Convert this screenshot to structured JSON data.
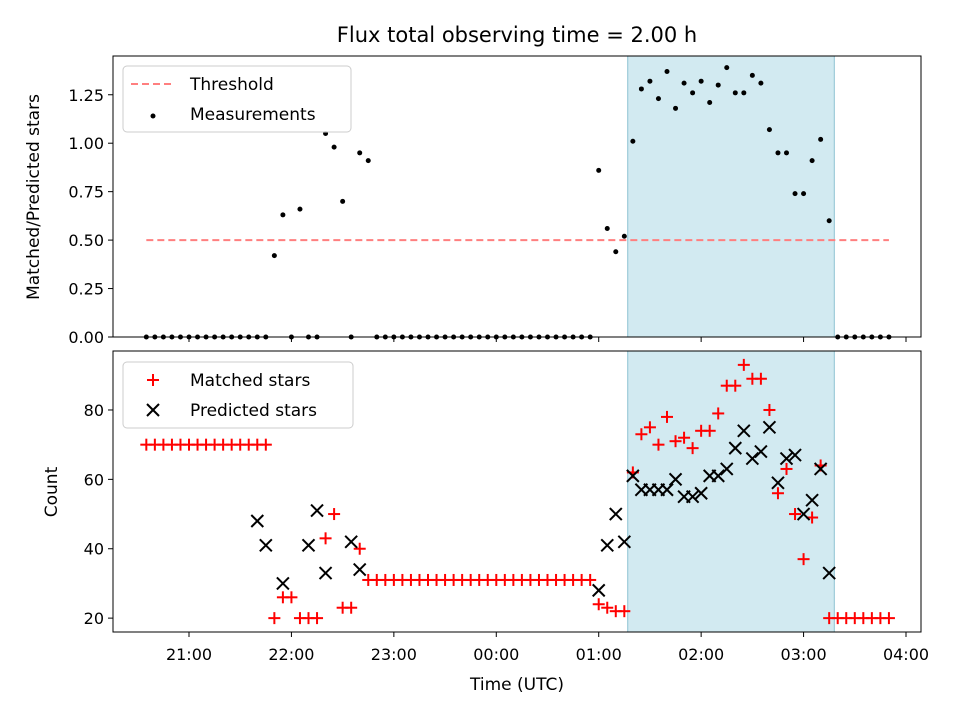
{
  "chart_data": [
    {
      "type": "scatter",
      "title": "Flux total observing time = 2.00 h",
      "xlabel": "",
      "ylabel": "Matched/Predicted stars",
      "ylim": [
        0,
        1.45
      ],
      "yticks": [
        "0.00",
        "0.25",
        "0.50",
        "0.75",
        "1.00",
        "1.25"
      ],
      "legend_position": "upper-left",
      "highlight_span": {
        "start": "01:17",
        "end": "03:18",
        "color": "#add8e6"
      },
      "series": [
        {
          "name": "Threshold",
          "kind": "dashed-line",
          "color": "#ff7f7f",
          "x": [
            "20:35",
            "03:50"
          ],
          "values": [
            0.5,
            0.5
          ]
        },
        {
          "name": "Measurements",
          "kind": "points",
          "color": "#000000",
          "x": [
            "20:35",
            "20:40",
            "20:45",
            "20:50",
            "20:55",
            "21:00",
            "21:05",
            "21:10",
            "21:15",
            "21:20",
            "21:25",
            "21:30",
            "21:35",
            "21:40",
            "21:45",
            "21:50",
            "21:55",
            "22:00",
            "22:05",
            "22:10",
            "22:15",
            "22:20",
            "22:25",
            "22:30",
            "22:35",
            "22:40",
            "22:45",
            "22:50",
            "22:55",
            "23:00",
            "23:05",
            "23:10",
            "23:15",
            "23:20",
            "23:25",
            "23:30",
            "23:35",
            "23:40",
            "23:45",
            "23:50",
            "23:55",
            "00:00",
            "00:05",
            "00:10",
            "00:15",
            "00:20",
            "00:25",
            "00:30",
            "00:35",
            "00:40",
            "00:45",
            "00:50",
            "00:55",
            "01:00",
            "01:05",
            "01:10",
            "01:15",
            "01:20",
            "01:25",
            "01:30",
            "01:35",
            "01:40",
            "01:45",
            "01:50",
            "01:55",
            "02:00",
            "02:05",
            "02:10",
            "02:15",
            "02:20",
            "02:25",
            "02:30",
            "02:35",
            "02:40",
            "02:45",
            "02:50",
            "02:55",
            "03:00",
            "03:05",
            "03:10",
            "03:15",
            "03:20",
            "03:25",
            "03:30",
            "03:35",
            "03:40",
            "03:45",
            "03:50"
          ],
          "values": [
            0,
            0,
            0,
            0,
            0,
            0,
            0,
            0,
            0,
            0,
            0,
            0,
            0,
            0,
            0,
            0.42,
            0.63,
            0,
            0.66,
            0,
            0,
            1.05,
            0.98,
            0.7,
            0,
            0.95,
            0.91,
            0,
            0,
            0,
            0,
            0,
            0,
            0,
            0,
            0,
            0,
            0,
            0,
            0,
            0,
            0,
            0,
            0,
            0,
            0,
            0,
            0,
            0,
            0,
            0,
            0,
            0,
            0.86,
            0.56,
            0.44,
            0.52,
            1.01,
            1.28,
            1.32,
            1.23,
            1.37,
            1.18,
            1.31,
            1.26,
            1.32,
            1.21,
            1.3,
            1.39,
            1.26,
            1.26,
            1.35,
            1.31,
            1.07,
            0.95,
            0.95,
            0.74,
            0.74,
            0.91,
            1.02,
            0.6,
            0,
            0,
            0,
            0,
            0,
            0,
            0
          ]
        }
      ]
    },
    {
      "type": "scatter",
      "title": "",
      "xlabel": "Time (UTC)",
      "ylabel": "Count",
      "ylim": [
        16,
        97
      ],
      "yticks": [
        "20",
        "40",
        "60",
        "80"
      ],
      "xticks": [
        "21:00",
        "22:00",
        "23:00",
        "00:00",
        "01:00",
        "02:00",
        "03:00",
        "04:00"
      ],
      "legend_position": "upper-left",
      "highlight_span": {
        "start": "01:17",
        "end": "03:18",
        "color": "#add8e6"
      },
      "series": [
        {
          "name": "Matched stars",
          "kind": "plus",
          "color": "#ff0000",
          "x": [
            "20:35",
            "20:40",
            "20:45",
            "20:50",
            "20:55",
            "21:00",
            "21:05",
            "21:10",
            "21:15",
            "21:20",
            "21:25",
            "21:30",
            "21:35",
            "21:40",
            "21:45",
            "21:50",
            "21:55",
            "22:00",
            "22:05",
            "22:10",
            "22:15",
            "22:20",
            "22:25",
            "22:30",
            "22:35",
            "22:40",
            "22:45",
            "22:50",
            "22:55",
            "23:00",
            "23:05",
            "23:10",
            "23:15",
            "23:20",
            "23:25",
            "23:30",
            "23:35",
            "23:40",
            "23:45",
            "23:50",
            "23:55",
            "00:00",
            "00:05",
            "00:10",
            "00:15",
            "00:20",
            "00:25",
            "00:30",
            "00:35",
            "00:40",
            "00:45",
            "00:50",
            "00:55",
            "01:00",
            "01:05",
            "01:10",
            "01:15",
            "01:20",
            "01:25",
            "01:30",
            "01:35",
            "01:40",
            "01:45",
            "01:50",
            "01:55",
            "02:00",
            "02:05",
            "02:10",
            "02:15",
            "02:20",
            "02:25",
            "02:30",
            "02:35",
            "02:40",
            "02:45",
            "02:50",
            "02:55",
            "03:00",
            "03:05",
            "03:10",
            "03:15",
            "03:20",
            "03:25",
            "03:30",
            "03:35",
            "03:40",
            "03:45",
            "03:50"
          ],
          "values": [
            70,
            70,
            70,
            70,
            70,
            70,
            70,
            70,
            70,
            70,
            70,
            70,
            70,
            70,
            70,
            20,
            26,
            26,
            20,
            20,
            20,
            43,
            50,
            23,
            23,
            40,
            31,
            31,
            31,
            31,
            31,
            31,
            31,
            31,
            31,
            31,
            31,
            31,
            31,
            31,
            31,
            31,
            31,
            31,
            31,
            31,
            31,
            31,
            31,
            31,
            31,
            31,
            31,
            24,
            23,
            22,
            22,
            62,
            73,
            75,
            70,
            78,
            71,
            72,
            69,
            74,
            74,
            79,
            87,
            87,
            93,
            89,
            89,
            80,
            56,
            63,
            50,
            37,
            49,
            64,
            20,
            20,
            20,
            20,
            20,
            20,
            20,
            20
          ]
        },
        {
          "name": "Predicted stars",
          "kind": "cross",
          "color": "#000000",
          "x": [
            "21:40",
            "21:45",
            "21:55",
            "22:10",
            "22:15",
            "22:20",
            "22:35",
            "22:40",
            "01:00",
            "01:05",
            "01:10",
            "01:15",
            "01:20",
            "01:25",
            "01:30",
            "01:35",
            "01:40",
            "01:45",
            "01:50",
            "01:55",
            "02:00",
            "02:05",
            "02:10",
            "02:15",
            "02:20",
            "02:25",
            "02:30",
            "02:35",
            "02:40",
            "02:45",
            "02:50",
            "02:55",
            "03:00",
            "03:05",
            "03:10",
            "03:15"
          ],
          "values": [
            48,
            41,
            30,
            41,
            51,
            33,
            42,
            34,
            28,
            41,
            50,
            42,
            61,
            57,
            57,
            57,
            57,
            60,
            55,
            55,
            56,
            61,
            61,
            63,
            69,
            74,
            66,
            68,
            75,
            59,
            66,
            67,
            50,
            54,
            63,
            33
          ]
        }
      ]
    }
  ]
}
